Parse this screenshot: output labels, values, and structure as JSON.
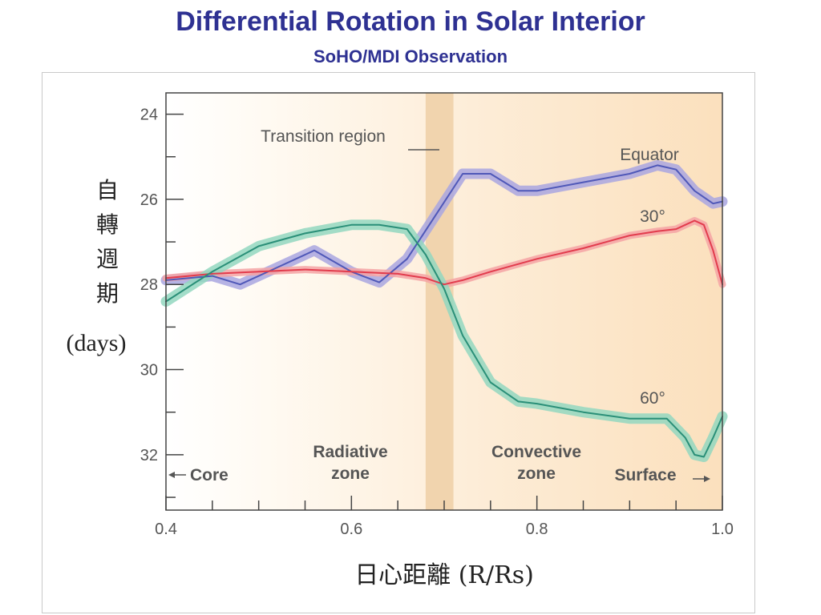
{
  "title": "Differential Rotation in Solar Interior",
  "subtitle": "SoHO/MDI Observation",
  "chart_data": {
    "type": "line",
    "ylabel_lines": [
      "自",
      "轉",
      "週",
      "期"
    ],
    "ylabel_unit": "(days)",
    "xlabel": "日心距離 (R/Rs)",
    "xlim": [
      0.4,
      1.0
    ],
    "ylim": [
      33.3,
      23.5
    ],
    "y_inverted": true,
    "xticks": [
      0.4,
      0.6,
      0.8,
      1.0
    ],
    "xtick_labels": [
      "0.4",
      "0.6",
      "0.8",
      "1.0"
    ],
    "yticks": [
      24,
      26,
      28,
      30,
      32
    ],
    "ytick_labels": [
      "24",
      "26",
      "28",
      "30",
      "32"
    ],
    "x_minor_step": 0.05,
    "y_minor_step": 1,
    "grid": false,
    "transition_band": [
      0.68,
      0.71
    ],
    "colors": {
      "equator": "#4f58b8",
      "equator_band": "#a9a6e0",
      "lat30": "#e23c4d",
      "lat30_band": "#f5a3a5",
      "lat60": "#2a8f78",
      "lat60_band": "#93d7c0",
      "transition": "#f0d0a8",
      "background_warm": "#fbe0bd",
      "label": "#555555"
    },
    "series": [
      {
        "name": "Equator",
        "x": [
          0.4,
          0.45,
          0.48,
          0.52,
          0.56,
          0.6,
          0.63,
          0.66,
          0.69,
          0.72,
          0.75,
          0.78,
          0.8,
          0.85,
          0.9,
          0.93,
          0.95,
          0.97,
          0.99,
          1.0
        ],
        "y": [
          27.9,
          27.8,
          28.0,
          27.6,
          27.2,
          27.7,
          27.95,
          27.4,
          26.4,
          25.4,
          25.4,
          25.8,
          25.8,
          25.6,
          25.4,
          25.2,
          25.3,
          25.8,
          26.1,
          26.05
        ]
      },
      {
        "name": "30°",
        "x": [
          0.4,
          0.45,
          0.5,
          0.55,
          0.6,
          0.65,
          0.68,
          0.7,
          0.72,
          0.75,
          0.8,
          0.85,
          0.9,
          0.93,
          0.95,
          0.96,
          0.97,
          0.98,
          0.99,
          1.0
        ],
        "y": [
          27.85,
          27.75,
          27.7,
          27.65,
          27.7,
          27.75,
          27.85,
          28.0,
          27.9,
          27.7,
          27.4,
          27.15,
          26.85,
          26.75,
          26.7,
          26.6,
          26.5,
          26.6,
          27.2,
          28.0
        ]
      },
      {
        "name": "60°",
        "x": [
          0.4,
          0.45,
          0.5,
          0.55,
          0.6,
          0.63,
          0.66,
          0.68,
          0.7,
          0.72,
          0.75,
          0.78,
          0.8,
          0.85,
          0.9,
          0.94,
          0.96,
          0.97,
          0.98,
          0.99,
          1.0
        ],
        "y": [
          28.4,
          27.7,
          27.1,
          26.8,
          26.6,
          26.6,
          26.7,
          27.3,
          28.1,
          29.2,
          30.3,
          30.75,
          30.8,
          31.0,
          31.15,
          31.15,
          31.6,
          32.0,
          32.05,
          31.6,
          31.1
        ]
      }
    ],
    "annotations": {
      "transition_region": "Transition region",
      "equator": "Equator",
      "lat30": "30°",
      "lat60": "60°",
      "radiative_1": "Radiative",
      "radiative_2": "zone",
      "convective_1": "Convective",
      "convective_2": "zone",
      "core": "Core",
      "surface": "Surface"
    }
  }
}
